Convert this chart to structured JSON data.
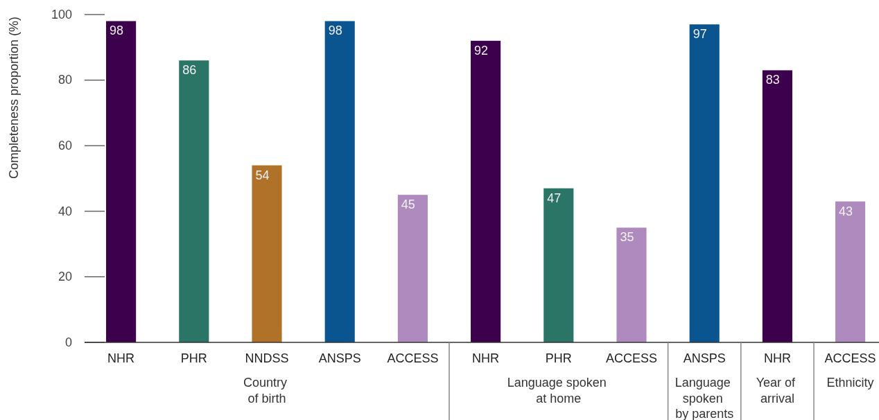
{
  "chart_data": {
    "type": "bar",
    "ylabel": "Completeness proportion (%)",
    "categories": [
      "NHR",
      "PHR",
      "NNDSS",
      "ANSPS",
      "ACCESS",
      "NHR",
      "PHR",
      "ACCESS",
      "ANSPS",
      "NHR",
      "ACCESS"
    ],
    "series": [
      {
        "name": "Country\nof birth",
        "values": [
          98,
          86,
          54,
          98,
          45,
          null,
          null,
          null,
          null,
          null,
          null
        ],
        "colors": [
          "#3c004c",
          "#2b7566",
          "#b07229",
          "#0a548f",
          "#ae8abf",
          null,
          null,
          null,
          null,
          null,
          null
        ]
      },
      {
        "name": "Language spoken\nat home",
        "values": [
          null,
          null,
          null,
          null,
          null,
          92,
          47,
          35,
          null,
          null,
          null
        ],
        "colors": [
          null,
          null,
          null,
          null,
          null,
          "#3c004c",
          "#2b7566",
          "#ae8abf",
          null,
          null,
          null
        ]
      },
      {
        "name": "Language\nspoken\nby parents",
        "values": [
          null,
          null,
          null,
          null,
          null,
          null,
          null,
          null,
          97,
          null,
          null
        ],
        "colors": [
          null,
          null,
          null,
          null,
          null,
          null,
          null,
          null,
          "#0a548f",
          null,
          null
        ]
      },
      {
        "name": "Year of\narrival",
        "values": [
          null,
          null,
          null,
          null,
          null,
          null,
          null,
          null,
          null,
          83,
          null
        ],
        "colors": [
          null,
          null,
          null,
          null,
          null,
          null,
          null,
          null,
          null,
          "#3c004c",
          null
        ]
      },
      {
        "name": "Ethnicity",
        "values": [
          null,
          null,
          null,
          null,
          null,
          null,
          null,
          null,
          null,
          null,
          43
        ],
        "colors": [
          null,
          null,
          null,
          null,
          null,
          null,
          null,
          null,
          null,
          null,
          "#ae8abf"
        ]
      }
    ],
    "ylim": [
      0,
      100
    ],
    "yticks": [
      0,
      20,
      40,
      60,
      80,
      100
    ],
    "data_labels": true
  }
}
